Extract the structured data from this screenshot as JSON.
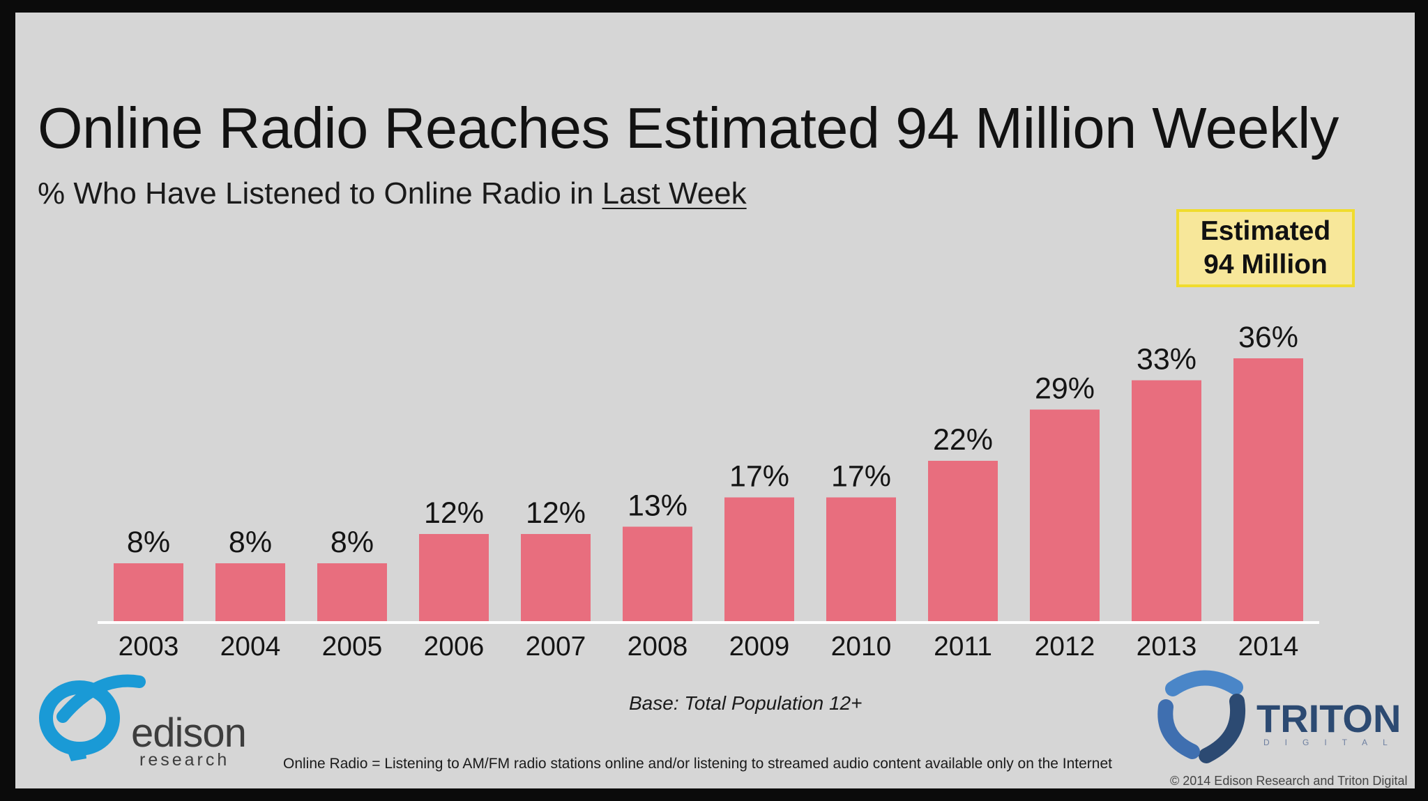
{
  "title": "Online Radio Reaches Estimated 94 Million Weekly",
  "subtitle_prefix": "% Who Have Listened to Online Radio in ",
  "subtitle_underlined": "Last Week",
  "callout": {
    "line1": "Estimated",
    "line2": "94 Million"
  },
  "base_note": "Base: Total Population 12+",
  "footnote": "Online Radio = Listening to AM/FM radio stations online and/or listening to streamed audio content available only on the Internet",
  "copyright": "© 2014 Edison Research and Triton Digital",
  "logos": {
    "edison": {
      "word": "edison",
      "sub": "research"
    },
    "triton": {
      "word": "TRITON",
      "sub": "DIGITAL"
    }
  },
  "colors": {
    "bar": "#e86e7e",
    "background": "#d6d6d6",
    "callout_fill": "#f7e79a",
    "callout_border": "#f0dc2e"
  },
  "chart_data": {
    "type": "bar",
    "title": "Online Radio Reaches Estimated 94 Million Weekly",
    "subtitle": "% Who Have Listened to Online Radio in Last Week",
    "categories": [
      "2003",
      "2004",
      "2005",
      "2006",
      "2007",
      "2008",
      "2009",
      "2010",
      "2011",
      "2012",
      "2013",
      "2014"
    ],
    "values": [
      8,
      8,
      8,
      12,
      12,
      13,
      17,
      17,
      22,
      29,
      33,
      36
    ],
    "data_labels": [
      "8%",
      "8%",
      "8%",
      "12%",
      "12%",
      "13%",
      "17%",
      "17%",
      "22%",
      "29%",
      "33%",
      "36%"
    ],
    "unit": "%",
    "xlabel": "",
    "ylabel": "",
    "ylim": [
      0,
      36
    ],
    "grid": false,
    "legend": "none"
  }
}
